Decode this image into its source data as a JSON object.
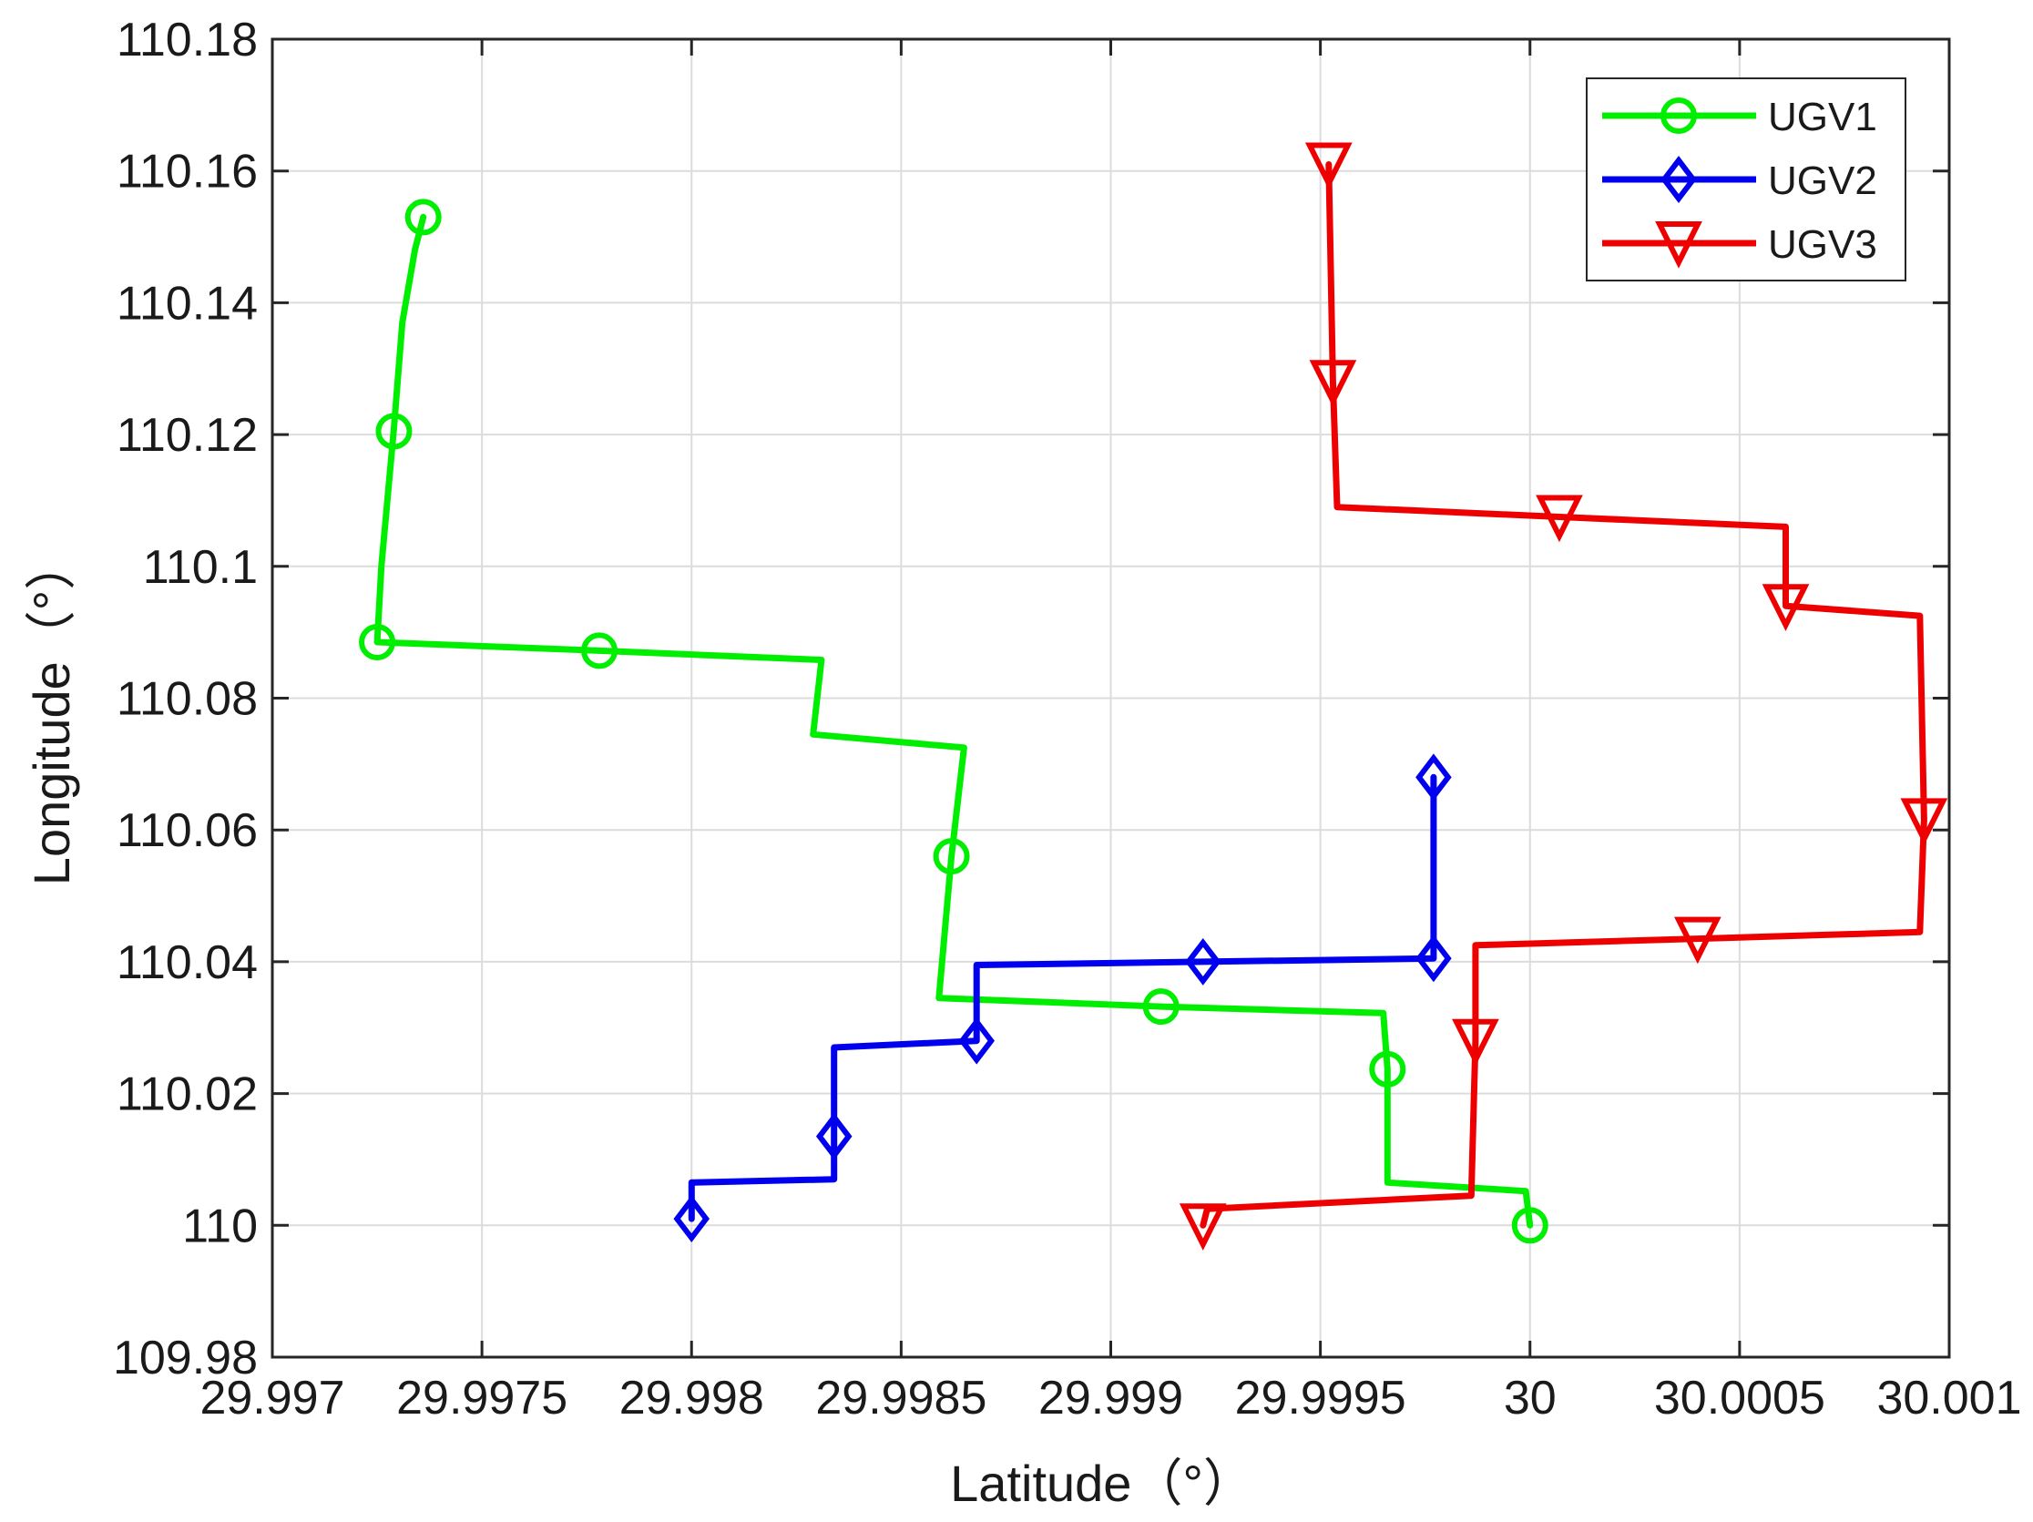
{
  "chart_data": {
    "type": "line",
    "xlabel": "Latitude（°）",
    "ylabel": "Longitude（°）",
    "xlim": [
      29.997,
      30.001
    ],
    "ylim": [
      109.98,
      110.18
    ],
    "xticks": [
      "29.997",
      "29.9975",
      "29.998",
      "29.9985",
      "29.999",
      "29.9995",
      "30",
      "30.0005",
      "30.001"
    ],
    "xtick_values": [
      29.997,
      29.9975,
      29.998,
      29.9985,
      29.999,
      29.9995,
      30.0,
      30.0005,
      30.001
    ],
    "yticks": [
      "109.98",
      "110",
      "110.02",
      "110.04",
      "110.06",
      "110.08",
      "110.1",
      "110.12",
      "110.14",
      "110.16",
      "110.18"
    ],
    "ytick_values": [
      109.98,
      110.0,
      110.02,
      110.04,
      110.06,
      110.08,
      110.1,
      110.12,
      110.14,
      110.16,
      110.18
    ],
    "grid": true,
    "legend_position": "top-right",
    "series": [
      {
        "name": "UGV1",
        "color": "#00ee00",
        "marker": "circle",
        "path": [
          [
            29.99736,
            110.153
          ],
          [
            29.99734,
            110.148
          ],
          [
            29.99731,
            110.137
          ],
          [
            29.99729,
            110.121
          ],
          [
            29.99726,
            110.1
          ],
          [
            29.99725,
            110.0885
          ],
          [
            29.99778,
            110.0872
          ],
          [
            29.99831,
            110.0858
          ],
          [
            29.99829,
            110.0745
          ],
          [
            29.99865,
            110.0725
          ],
          [
            29.99862,
            110.056
          ],
          [
            29.99859,
            110.0345
          ],
          [
            29.99912,
            110.0332
          ],
          [
            29.99965,
            110.0322
          ],
          [
            29.99966,
            110.0237
          ],
          [
            29.99966,
            110.0065
          ],
          [
            29.99999,
            110.0052
          ],
          [
            30.0,
            110.0
          ]
        ],
        "markers": [
          [
            29.99736,
            110.153
          ],
          [
            29.99729,
            110.1205
          ],
          [
            29.99725,
            110.0885
          ],
          [
            29.99778,
            110.0872
          ],
          [
            29.99862,
            110.056
          ],
          [
            29.99912,
            110.0332
          ],
          [
            29.99966,
            110.0237
          ],
          [
            30.0,
            110.0
          ]
        ]
      },
      {
        "name": "UGV2",
        "color": "#0000ee",
        "marker": "diamond",
        "path": [
          [
            29.998,
            110.001
          ],
          [
            29.998,
            110.0065
          ],
          [
            29.99834,
            110.007
          ],
          [
            29.99834,
            110.0135
          ],
          [
            29.99834,
            110.027
          ],
          [
            29.99868,
            110.028
          ],
          [
            29.99868,
            110.0395
          ],
          [
            29.99922,
            110.04
          ],
          [
            29.99977,
            110.0405
          ],
          [
            29.99977,
            110.068
          ]
        ],
        "markers": [
          [
            29.998,
            110.001
          ],
          [
            29.99834,
            110.0135
          ],
          [
            29.99868,
            110.028
          ],
          [
            29.99922,
            110.04
          ],
          [
            29.99977,
            110.0405
          ],
          [
            29.99977,
            110.068
          ]
        ]
      },
      {
        "name": "UGV3",
        "color": "#ee0000",
        "marker": "triangle-down",
        "path": [
          [
            29.99922,
            110.0
          ],
          [
            29.99923,
            110.0025
          ],
          [
            29.99986,
            110.0045
          ],
          [
            29.99987,
            110.028
          ],
          [
            29.99987,
            110.0425
          ],
          [
            30.0004,
            110.0435
          ],
          [
            30.00093,
            110.0445
          ],
          [
            30.00094,
            110.0615
          ],
          [
            30.00093,
            110.0925
          ],
          [
            30.00061,
            110.094
          ],
          [
            30.00061,
            110.106
          ],
          [
            30.00007,
            110.1075
          ],
          [
            29.99954,
            110.109
          ],
          [
            29.99953,
            110.128
          ],
          [
            29.99952,
            110.161
          ]
        ],
        "markers": [
          [
            29.99922,
            110.0
          ],
          [
            29.99987,
            110.028
          ],
          [
            30.0004,
            110.0435
          ],
          [
            30.00094,
            110.0615
          ],
          [
            30.00061,
            110.094
          ],
          [
            30.00007,
            110.1075
          ],
          [
            29.99953,
            110.128
          ],
          [
            29.99952,
            110.161
          ]
        ]
      }
    ]
  }
}
